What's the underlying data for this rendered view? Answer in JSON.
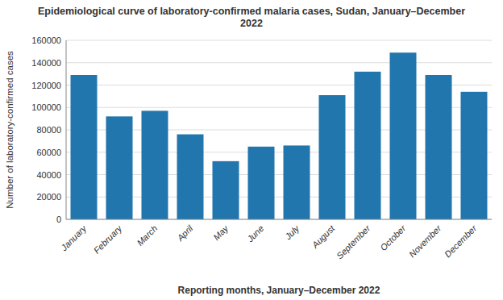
{
  "chart_data": {
    "type": "bar",
    "title": "Epidemiological curve of laboratory-confirmed malaria cases, Sudan, January–December\n2022",
    "xlabel": "Reporting months, January–December 2022",
    "ylabel": "Number of laboratory-confirmed cases",
    "categories": [
      "January",
      "February",
      "March",
      "April",
      "May",
      "June",
      "July",
      "August",
      "September",
      "October",
      "November",
      "December"
    ],
    "values": [
      129000,
      92000,
      97000,
      76000,
      52000,
      65000,
      66000,
      111000,
      132000,
      149000,
      129000,
      114000
    ],
    "color": "#2176ae",
    "ylim": [
      0,
      160000
    ],
    "yticks": [
      0,
      20000,
      40000,
      60000,
      80000,
      100000,
      120000,
      140000,
      160000
    ],
    "grid": true
  }
}
